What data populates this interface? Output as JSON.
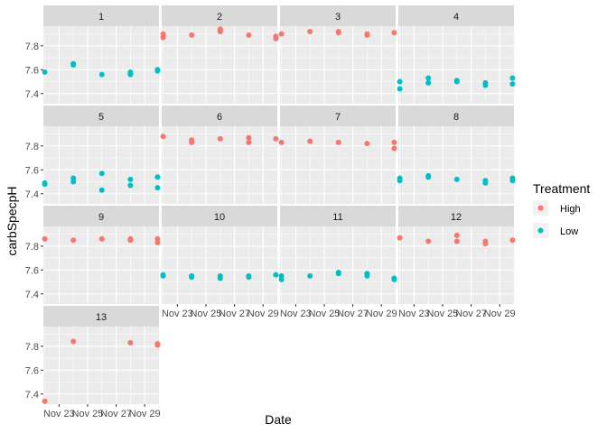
{
  "chart_data": {
    "type": "scatter",
    "facet_by": "site",
    "xlabel": "Date",
    "ylabel": "carbSpecpH",
    "x_ticks": [
      {
        "value": 23,
        "label": "Nov 23"
      },
      {
        "value": 25,
        "label": "Nov 25"
      },
      {
        "value": 27,
        "label": "Nov 27"
      },
      {
        "value": 29,
        "label": "Nov 29"
      }
    ],
    "xlim": [
      21.9,
      30.0
    ],
    "ylim": [
      7.315,
      7.965
    ],
    "y_ticks": [
      7.4,
      7.6,
      7.8
    ],
    "legend": {
      "title": "Treatment",
      "position": "right",
      "items": [
        {
          "label": "High",
          "color": "#F8766D"
        },
        {
          "label": "Low",
          "color": "#00BFC4"
        }
      ]
    },
    "panels": [
      {
        "label": "1",
        "treatment": "Low",
        "points": [
          [
            22.0,
            7.58
          ],
          [
            24.0,
            7.65
          ],
          [
            24.0,
            7.64
          ],
          [
            26.0,
            7.56
          ],
          [
            28.0,
            7.57
          ],
          [
            28.0,
            7.56
          ],
          [
            28.0,
            7.58
          ],
          [
            29.9,
            7.6
          ],
          [
            29.9,
            7.59
          ]
        ]
      },
      {
        "label": "2",
        "treatment": "High",
        "points": [
          [
            22.0,
            7.9
          ],
          [
            22.0,
            7.87
          ],
          [
            24.0,
            7.89
          ],
          [
            26.0,
            7.93
          ],
          [
            26.0,
            7.94
          ],
          [
            26.0,
            7.92
          ],
          [
            28.0,
            7.89
          ],
          [
            29.9,
            7.88
          ],
          [
            29.9,
            7.86
          ]
        ]
      },
      {
        "label": "3",
        "treatment": "High",
        "points": [
          [
            22.0,
            7.9
          ],
          [
            24.0,
            7.92
          ],
          [
            26.0,
            7.92
          ],
          [
            26.0,
            7.91
          ],
          [
            28.0,
            7.9
          ],
          [
            28.0,
            7.89
          ],
          [
            29.9,
            7.91
          ]
        ]
      },
      {
        "label": "4",
        "treatment": "Low",
        "points": [
          [
            22.0,
            7.5
          ],
          [
            22.0,
            7.44
          ],
          [
            24.0,
            7.53
          ],
          [
            24.0,
            7.49
          ],
          [
            26.0,
            7.51
          ],
          [
            26.0,
            7.5
          ],
          [
            28.0,
            7.49
          ],
          [
            28.0,
            7.47
          ],
          [
            29.9,
            7.53
          ],
          [
            29.9,
            7.48
          ]
        ]
      },
      {
        "label": "5",
        "treatment": "Low",
        "points": [
          [
            22.0,
            7.49
          ],
          [
            22.0,
            7.48
          ],
          [
            24.0,
            7.53
          ],
          [
            24.0,
            7.5
          ],
          [
            26.0,
            7.57
          ],
          [
            26.0,
            7.43
          ],
          [
            28.0,
            7.52
          ],
          [
            28.0,
            7.47
          ],
          [
            29.9,
            7.54
          ],
          [
            29.9,
            7.45
          ]
        ]
      },
      {
        "label": "6",
        "treatment": "High",
        "points": [
          [
            22.0,
            7.88
          ],
          [
            24.0,
            7.85
          ],
          [
            24.0,
            7.83
          ],
          [
            26.0,
            7.86
          ],
          [
            28.0,
            7.87
          ],
          [
            28.0,
            7.83
          ],
          [
            29.9,
            7.86
          ]
        ]
      },
      {
        "label": "7",
        "treatment": "High",
        "points": [
          [
            22.0,
            7.83
          ],
          [
            24.0,
            7.84
          ],
          [
            26.0,
            7.83
          ],
          [
            28.0,
            7.82
          ],
          [
            29.9,
            7.83
          ],
          [
            29.9,
            7.78
          ]
        ]
      },
      {
        "label": "8",
        "treatment": "Low",
        "points": [
          [
            22.0,
            7.53
          ],
          [
            22.0,
            7.51
          ],
          [
            24.0,
            7.55
          ],
          [
            24.0,
            7.54
          ],
          [
            26.0,
            7.52
          ],
          [
            28.0,
            7.51
          ],
          [
            28.0,
            7.49
          ],
          [
            29.9,
            7.53
          ],
          [
            29.9,
            7.51
          ]
        ]
      },
      {
        "label": "9",
        "treatment": "High",
        "points": [
          [
            22.0,
            7.86
          ],
          [
            24.0,
            7.85
          ],
          [
            26.0,
            7.86
          ],
          [
            28.0,
            7.86
          ],
          [
            28.0,
            7.85
          ],
          [
            29.9,
            7.86
          ],
          [
            29.9,
            7.83
          ]
        ]
      },
      {
        "label": "10",
        "treatment": "Low",
        "points": [
          [
            22.0,
            7.56
          ],
          [
            22.0,
            7.55
          ],
          [
            24.0,
            7.55
          ],
          [
            24.0,
            7.54
          ],
          [
            26.0,
            7.55
          ],
          [
            26.0,
            7.53
          ],
          [
            28.0,
            7.55
          ],
          [
            28.0,
            7.54
          ],
          [
            29.9,
            7.56
          ]
        ]
      },
      {
        "label": "11",
        "treatment": "Low",
        "points": [
          [
            22.0,
            7.55
          ],
          [
            22.0,
            7.52
          ],
          [
            24.0,
            7.55
          ],
          [
            26.0,
            7.58
          ],
          [
            26.0,
            7.57
          ],
          [
            28.0,
            7.57
          ],
          [
            28.0,
            7.55
          ],
          [
            29.9,
            7.53
          ],
          [
            29.9,
            7.52
          ]
        ]
      },
      {
        "label": "12",
        "treatment": "High",
        "points": [
          [
            22.0,
            7.87
          ],
          [
            24.0,
            7.84
          ],
          [
            26.0,
            7.89
          ],
          [
            26.0,
            7.84
          ],
          [
            28.0,
            7.84
          ],
          [
            28.0,
            7.82
          ],
          [
            29.9,
            7.85
          ]
        ]
      },
      {
        "label": "13",
        "treatment": "High",
        "points": [
          [
            22.0,
            7.34
          ],
          [
            24.0,
            7.84
          ],
          [
            28.0,
            7.83
          ],
          [
            29.9,
            7.82
          ],
          [
            29.9,
            7.81
          ]
        ]
      }
    ]
  }
}
